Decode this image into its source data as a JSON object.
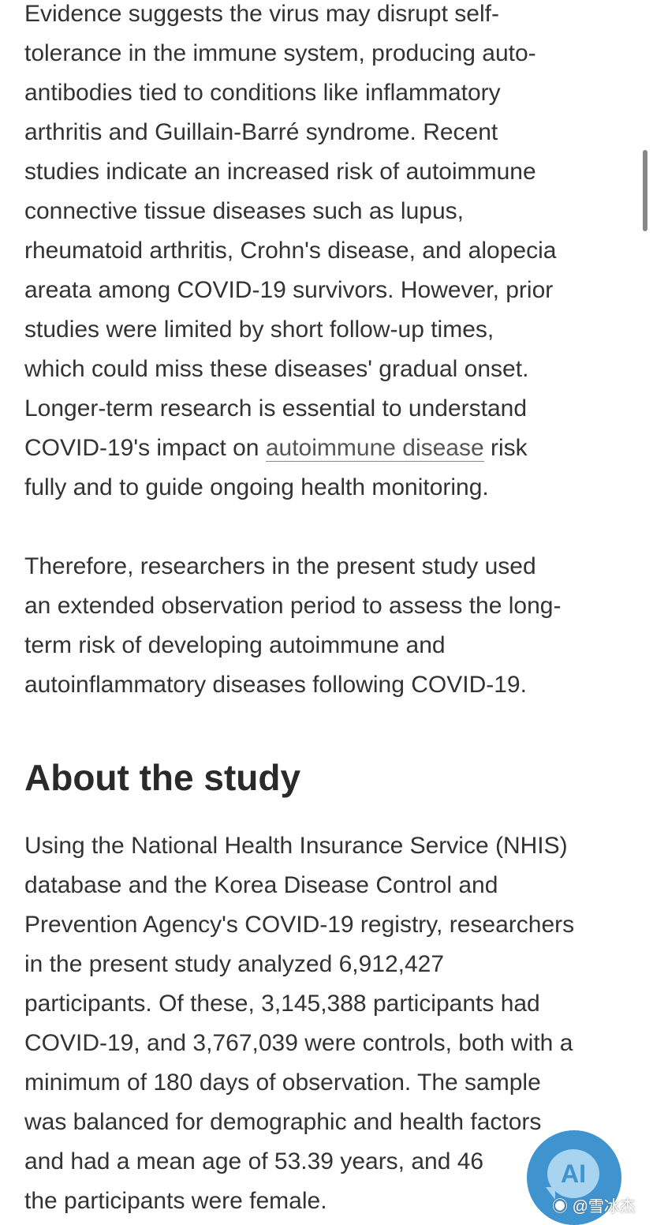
{
  "paragraph1": {
    "lines": [
      "Evidence suggests the virus may disrupt self-",
      "tolerance in the immune system, producing auto-",
      "antibodies tied to conditions like inflammatory",
      "arthritis and Guillain-Barré syndrome. Recent",
      "studies indicate an increased risk of autoimmune",
      "connective tissue diseases such as lupus,",
      "rheumatoid arthritis, Crohn's disease, and alopecia",
      "areata among COVID-19 survivors. However, prior",
      "studies were limited by short follow-up times,",
      "which could miss these diseases' gradual onset.",
      "Longer-term research is essential to understand"
    ],
    "link_line_before": "COVID-19's impact on ",
    "link_text": "autoimmune disease",
    "link_line_after": " risk",
    "last_line": "fully and to guide ongoing health monitoring."
  },
  "paragraph2": {
    "lines": [
      "Therefore, researchers in the present study used",
      "an extended observation period to assess the long-",
      "term risk of developing autoimmune and",
      "autoinflammatory diseases following COVID-19."
    ]
  },
  "heading": "About the study",
  "paragraph3": {
    "lines": [
      "Using the National Health Insurance Service (NHIS)",
      "database and the Korea Disease Control and",
      "Prevention Agency's COVID-19 registry, researchers",
      "in the present study analyzed 6,912,427",
      "participants. Of these, 3,145,388 participants had",
      "COVID-19, and 3,767,039 were controls, both with a",
      "minimum of 180 days of observation. The sample",
      "was balanced for demographic and health factors",
      "and had a mean age of 53.39 years, and 46",
      "the participants were female."
    ]
  },
  "ai_button": {
    "label": "AI",
    "color": "#3f94d0"
  },
  "watermark": "@雪冰杰"
}
